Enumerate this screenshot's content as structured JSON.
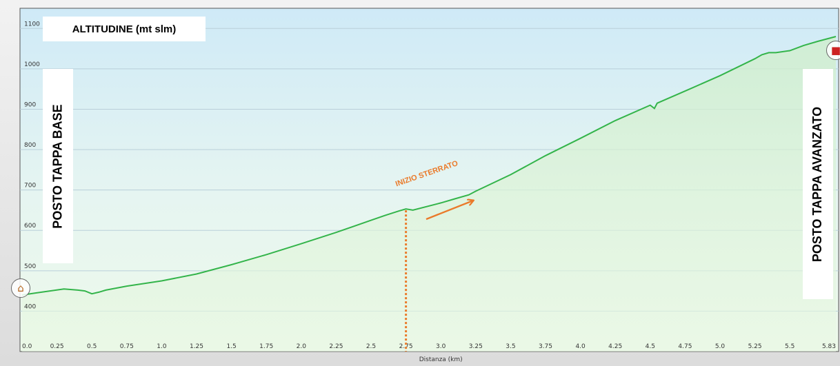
{
  "chart_data": {
    "type": "area",
    "title": "ALTITUDINE (mt slm)",
    "xlabel": "Distanza  (km)",
    "ylabel": "",
    "xlim": [
      0,
      5.83
    ],
    "ylim": [
      300,
      1150
    ],
    "x_ticks": [
      "0.0",
      "0.25",
      "0.5",
      "0.75",
      "1.0",
      "1.25",
      "1.5",
      "1.75",
      "2.0",
      "2.25",
      "2.5",
      "2.75",
      "3.0",
      "3.25",
      "3.5",
      "3.75",
      "4.0",
      "4.25",
      "4.5",
      "4.75",
      "5.0",
      "5.25",
      "5.5",
      "5.83"
    ],
    "y_ticks": [
      400,
      500,
      600,
      700,
      800,
      900,
      1000,
      1100
    ],
    "grid": true,
    "series": [
      {
        "x": [
          0,
          0.1,
          0.2,
          0.3,
          0.4,
          0.45,
          0.5,
          0.55,
          0.6,
          0.75,
          1.0,
          1.25,
          1.5,
          1.75,
          2.0,
          2.25,
          2.5,
          2.6,
          2.7,
          2.75,
          2.8,
          3.0,
          3.1,
          3.2,
          3.25,
          3.5,
          3.75,
          4.0,
          4.25,
          4.5,
          4.53,
          4.55,
          4.75,
          5.0,
          5.25,
          5.3,
          5.35,
          5.4,
          5.5,
          5.6,
          5.7,
          5.83
        ],
        "values": [
          440,
          445,
          450,
          455,
          452,
          450,
          443,
          447,
          452,
          462,
          475,
          492,
          515,
          540,
          567,
          595,
          625,
          637,
          648,
          653,
          650,
          668,
          678,
          688,
          697,
          738,
          785,
          828,
          872,
          910,
          902,
          915,
          945,
          983,
          1025,
          1035,
          1040,
          1040,
          1045,
          1058,
          1068,
          1080
        ]
      }
    ],
    "annotations": [
      {
        "text": "INIZIO STERRATO",
        "x": 2.75,
        "y": 653
      }
    ],
    "colors": {
      "line": "#33b44a",
      "annotation": "#ea7a2a"
    }
  },
  "labels": {
    "left": "POSTO TAPPA BASE",
    "right": "POSTO TAPPA AVANZATO"
  },
  "icons": {
    "start": "home-icon",
    "end": "car-icon"
  }
}
